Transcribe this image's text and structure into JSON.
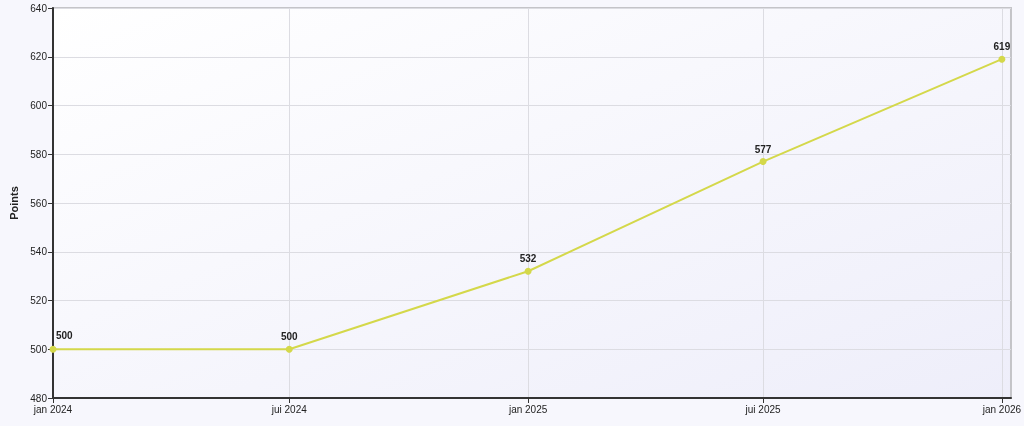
{
  "chart_data": {
    "type": "line",
    "ylabel": "Points",
    "x": [
      "2024-01",
      "2024-07",
      "2025-01",
      "2025-07",
      "2026-01"
    ],
    "series": [
      {
        "color": "#d4d84a",
        "values": [
          500,
          500,
          532,
          577,
          619
        ]
      }
    ],
    "xlim": [
      "2024-01-01",
      "2026-01-08"
    ],
    "xticks": [
      {
        "value": "2024-01",
        "label": "jan 2024"
      },
      {
        "value": "2024-07",
        "label": "jui 2024"
      },
      {
        "value": "2025-01",
        "label": "jan 2025"
      },
      {
        "value": "2025-07",
        "label": "jui 2025"
      },
      {
        "value": "2026-01",
        "label": "jan 2026"
      }
    ],
    "ylim": [
      480,
      640
    ],
    "yticks": [
      480,
      500,
      520,
      540,
      560,
      580,
      600,
      620,
      640
    ],
    "grid": true,
    "data_labels": true,
    "marker": "circle",
    "line_style": "solid"
  }
}
